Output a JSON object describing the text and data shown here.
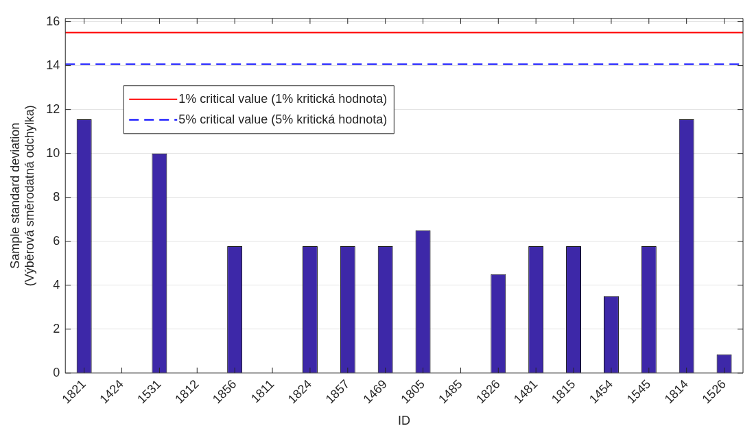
{
  "chart_data": {
    "type": "bar",
    "xlabel": "ID",
    "ylabel": "Sample standard deviation\n(Výběrová směrodatná odchylka)",
    "categories": [
      "1821",
      "1424",
      "1531",
      "1812",
      "1856",
      "1811",
      "1824",
      "1857",
      "1469",
      "1805",
      "1485",
      "1826",
      "1481",
      "1815",
      "1454",
      "1545",
      "1814",
      "1526"
    ],
    "values": [
      11.55,
      0,
      10,
      0,
      5.77,
      0,
      5.77,
      5.77,
      5.77,
      6.5,
      0,
      4.5,
      5.77,
      5.77,
      3.5,
      5.77,
      11.55,
      0.85
    ],
    "color": "#3d28a8",
    "ylim": [
      0,
      16.15
    ],
    "yticks": [
      0,
      2,
      4,
      6,
      8,
      10,
      12,
      14,
      16
    ],
    "grid": "y",
    "legend": "top left",
    "ref_lines": [
      {
        "axis": "y",
        "value": 15.5,
        "label": "1% critical value (1% kritická hodnota)",
        "color": "#ff0000",
        "line_style": "solid"
      },
      {
        "axis": "y",
        "value": 14.07,
        "label": "5% critical value (5% kritická hodnota)",
        "color": "#0000ff",
        "line_style": "dashed"
      }
    ]
  }
}
